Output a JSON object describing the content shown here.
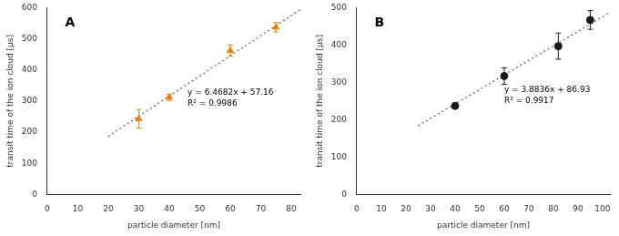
{
  "chart_data": [
    {
      "type": "scatter",
      "title": "A",
      "x_label": "particle diameter [nm]",
      "y_label": "transit time of the ion cloud [µs]",
      "xlim": [
        0,
        83
      ],
      "ylim": [
        0,
        600
      ],
      "xticks": [
        0,
        10,
        20,
        30,
        40,
        50,
        60,
        70,
        80
      ],
      "yticks": [
        0,
        100,
        200,
        300,
        400,
        500,
        600
      ],
      "grid": false,
      "series": [
        {
          "type": "line",
          "color": "#666666",
          "line_style": "dotted",
          "x": [
            20,
            83
          ],
          "values": [
            186.524,
            594.0206
          ]
        },
        {
          "type": "scatter",
          "color": "#E8820A",
          "marker": "triangle",
          "x": [
            30,
            40,
            60,
            75
          ],
          "values": [
            243,
            312,
            462,
            537
          ],
          "yerr": [
            30,
            10,
            18,
            15
          ]
        }
      ],
      "annotations": [
        {
          "text": "y = 6.4682x + 57.16\nR² = 0.9986",
          "x": 46,
          "y": 340
        }
      ]
    },
    {
      "type": "scatter",
      "title": "B",
      "x_label": "particle diameter [nm]",
      "y_label": "transit time of the ion cloud [µs]",
      "xlim": [
        0,
        103
      ],
      "ylim": [
        0,
        500
      ],
      "xticks": [
        0,
        10,
        20,
        30,
        40,
        50,
        60,
        70,
        80,
        90,
        100
      ],
      "yticks": [
        0,
        100,
        200,
        300,
        400,
        500
      ],
      "grid": false,
      "series": [
        {
          "type": "line",
          "color": "#666666",
          "line_style": "dotted",
          "x": [
            25,
            103
          ],
          "values": [
            184.02,
            486.9408
          ]
        },
        {
          "type": "scatter",
          "color": "#1a1a1a",
          "marker": "circle",
          "x": [
            40,
            60,
            82,
            95
          ],
          "values": [
            237,
            317,
            397,
            467
          ],
          "yerr": [
            3,
            22,
            35,
            25
          ]
        }
      ],
      "annotations": [
        {
          "text": "y = 3.8836x + 86.93\nR² = 0.9917",
          "x": 60,
          "y": 290
        }
      ]
    }
  ]
}
